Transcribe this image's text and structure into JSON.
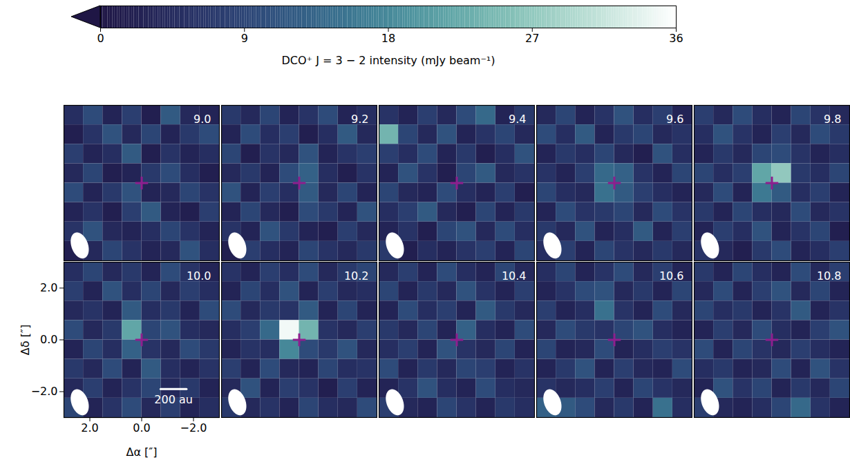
{
  "chart_data": {
    "type": "heatmap",
    "xlabel": "Δα [″]",
    "ylabel": "Δδ [″]",
    "xlim": [
      3,
      -3
    ],
    "ylim": [
      -3,
      3
    ],
    "xticks": [
      2,
      0,
      -2
    ],
    "yticks": [
      -2,
      0,
      2
    ],
    "x": [
      2.625,
      1.875,
      1.125,
      0.375,
      -0.375,
      -1.125,
      -1.875,
      -2.625
    ],
    "y": [
      2.625,
      1.875,
      1.125,
      0.375,
      -0.375,
      -1.125,
      -1.875,
      -2.625
    ],
    "colorbar": {
      "label": "DCO⁺ J = 3 − 2 intensity (mJy beam⁻¹)",
      "range": [
        0,
        36
      ],
      "ticks": [
        0,
        9,
        18,
        27,
        36
      ]
    },
    "source": {
      "x": 0,
      "y": 0
    },
    "beam": {
      "major": 1.0,
      "minor": 0.6,
      "pa": 20
    },
    "scale_bar": {
      "label": "200 au",
      "length": 1.0,
      "channel": "10.0"
    },
    "channels": [
      {
        "label": "9.0",
        "cells": [
          [
            5,
            10,
            3,
            8,
            2,
            12,
            4,
            3
          ],
          [
            2,
            6,
            11,
            4,
            9,
            3,
            7,
            10
          ],
          [
            8,
            3,
            5,
            12,
            2,
            6,
            3,
            5
          ],
          [
            4,
            9,
            2,
            3,
            7,
            10,
            5,
            2
          ],
          [
            10,
            3,
            7,
            11,
            3,
            4,
            9,
            6
          ],
          [
            3,
            6,
            2,
            8,
            12,
            3,
            2,
            8
          ],
          [
            6,
            11,
            4,
            3,
            5,
            9,
            6,
            3
          ],
          [
            2,
            4,
            9,
            6,
            3,
            4,
            11,
            5
          ]
        ]
      },
      {
        "label": "9.2",
        "cells": [
          [
            7,
            4,
            9,
            3,
            6,
            10,
            3,
            5
          ],
          [
            3,
            10,
            5,
            8,
            2,
            5,
            12,
            4
          ],
          [
            9,
            2,
            6,
            4,
            11,
            3,
            6,
            8
          ],
          [
            4,
            7,
            3,
            10,
            13,
            5,
            2,
            6
          ],
          [
            11,
            3,
            8,
            5,
            12,
            4,
            9,
            3
          ],
          [
            3,
            9,
            4,
            2,
            10,
            7,
            3,
            11
          ],
          [
            6,
            3,
            11,
            7,
            3,
            2,
            8,
            4
          ],
          [
            2,
            8,
            5,
            3,
            9,
            6,
            4,
            7
          ]
        ]
      },
      {
        "label": "9.4",
        "cells": [
          [
            6,
            3,
            8,
            4,
            10,
            14,
            3,
            7
          ],
          [
            24,
            9,
            4,
            11,
            3,
            6,
            9,
            4
          ],
          [
            8,
            5,
            10,
            3,
            7,
            2,
            5,
            11
          ],
          [
            3,
            11,
            6,
            2,
            9,
            12,
            4,
            6
          ],
          [
            9,
            4,
            3,
            10,
            5,
            3,
            8,
            2
          ],
          [
            5,
            8,
            12,
            4,
            2,
            9,
            3,
            7
          ],
          [
            3,
            6,
            2,
            9,
            11,
            4,
            10,
            5
          ],
          [
            7,
            2,
            5,
            3,
            6,
            8,
            3,
            9
          ]
        ]
      },
      {
        "label": "9.6",
        "cells": [
          [
            4,
            9,
            3,
            6,
            11,
            5,
            8,
            3
          ],
          [
            10,
            5,
            12,
            3,
            7,
            9,
            4,
            6
          ],
          [
            3,
            7,
            5,
            9,
            4,
            2,
            11,
            5
          ],
          [
            6,
            3,
            8,
            14,
            13,
            6,
            3,
            9
          ],
          [
            9,
            5,
            4,
            15,
            12,
            8,
            5,
            3
          ],
          [
            3,
            10,
            6,
            7,
            9,
            4,
            10,
            6
          ],
          [
            7,
            4,
            11,
            3,
            5,
            12,
            3,
            8
          ],
          [
            5,
            8,
            3,
            9,
            6,
            4,
            7,
            4
          ]
        ]
      },
      {
        "label": "9.8",
        "cells": [
          [
            8,
            4,
            10,
            5,
            3,
            9,
            6,
            4
          ],
          [
            5,
            11,
            6,
            3,
            8,
            4,
            10,
            7
          ],
          [
            3,
            7,
            4,
            9,
            10,
            6,
            3,
            5
          ],
          [
            9,
            5,
            8,
            22,
            27,
            7,
            5,
            9
          ],
          [
            4,
            10,
            3,
            16,
            12,
            5,
            8,
            3
          ],
          [
            7,
            3,
            9,
            5,
            4,
            10,
            4,
            6
          ],
          [
            3,
            8,
            5,
            11,
            3,
            6,
            9,
            2
          ],
          [
            6,
            4,
            2,
            7,
            10,
            3,
            5,
            8
          ]
        ]
      },
      {
        "label": "10.0",
        "cells": [
          [
            5,
            9,
            4,
            7,
            3,
            10,
            6,
            3
          ],
          [
            8,
            3,
            11,
            5,
            9,
            4,
            8,
            5
          ],
          [
            4,
            6,
            3,
            12,
            5,
            7,
            3,
            10
          ],
          [
            10,
            4,
            7,
            22,
            9,
            11,
            5,
            4
          ],
          [
            3,
            9,
            5,
            13,
            6,
            4,
            10,
            7
          ],
          [
            7,
            4,
            10,
            3,
            12,
            5,
            3,
            6
          ],
          [
            4,
            8,
            3,
            6,
            9,
            4,
            7,
            3
          ],
          [
            9,
            3,
            6,
            10,
            4,
            8,
            3,
            5
          ]
        ]
      },
      {
        "label": "10.2",
        "cells": [
          [
            6,
            3,
            8,
            5,
            10,
            4,
            7,
            9
          ],
          [
            3,
            9,
            5,
            11,
            3,
            8,
            4,
            5
          ],
          [
            10,
            4,
            7,
            6,
            12,
            3,
            9,
            3
          ],
          [
            5,
            8,
            14,
            35,
            24,
            6,
            4,
            8
          ],
          [
            3,
            6,
            5,
            18,
            10,
            7,
            11,
            4
          ],
          [
            8,
            3,
            10,
            4,
            3,
            9,
            5,
            6
          ],
          [
            4,
            11,
            3,
            8,
            6,
            2,
            8,
            3
          ],
          [
            7,
            4,
            6,
            3,
            9,
            5,
            4,
            10
          ]
        ]
      },
      {
        "label": "10.4",
        "cells": [
          [
            4,
            8,
            3,
            10,
            5,
            3,
            9,
            4
          ],
          [
            9,
            3,
            7,
            4,
            11,
            6,
            3,
            8
          ],
          [
            3,
            10,
            5,
            8,
            3,
            12,
            7,
            4
          ],
          [
            7,
            4,
            9,
            3,
            13,
            5,
            3,
            10
          ],
          [
            5,
            8,
            3,
            11,
            6,
            4,
            9,
            3
          ],
          [
            10,
            3,
            7,
            4,
            9,
            8,
            3,
            6
          ],
          [
            3,
            6,
            11,
            5,
            3,
            10,
            5,
            4
          ],
          [
            8,
            4,
            3,
            9,
            6,
            3,
            7,
            5
          ]
        ]
      },
      {
        "label": "10.6",
        "cells": [
          [
            5,
            9,
            3,
            6,
            10,
            4,
            8,
            3
          ],
          [
            3,
            6,
            10,
            11,
            4,
            7,
            3,
            9
          ],
          [
            8,
            3,
            5,
            15,
            6,
            3,
            10,
            4
          ],
          [
            4,
            10,
            7,
            6,
            9,
            11,
            5,
            3
          ],
          [
            9,
            3,
            4,
            10,
            3,
            5,
            8,
            6
          ],
          [
            3,
            7,
            11,
            3,
            8,
            4,
            3,
            10
          ],
          [
            6,
            4,
            5,
            8,
            3,
            9,
            6,
            4
          ],
          [
            13,
            12,
            10,
            4,
            7,
            3,
            15,
            5
          ]
        ]
      },
      {
        "label": "10.8",
        "cells": [
          [
            7,
            3,
            9,
            5,
            3,
            10,
            4,
            8
          ],
          [
            4,
            10,
            3,
            8,
            11,
            4,
            9,
            3
          ],
          [
            9,
            5,
            7,
            3,
            6,
            12,
            3,
            6
          ],
          [
            3,
            8,
            4,
            10,
            5,
            3,
            8,
            11
          ],
          [
            10,
            3,
            9,
            6,
            4,
            8,
            5,
            3
          ],
          [
            5,
            7,
            3,
            4,
            10,
            3,
            11,
            6
          ],
          [
            3,
            11,
            6,
            9,
            3,
            7,
            4,
            9
          ],
          [
            8,
            4,
            3,
            5,
            9,
            14,
            6,
            3
          ]
        ]
      }
    ]
  }
}
